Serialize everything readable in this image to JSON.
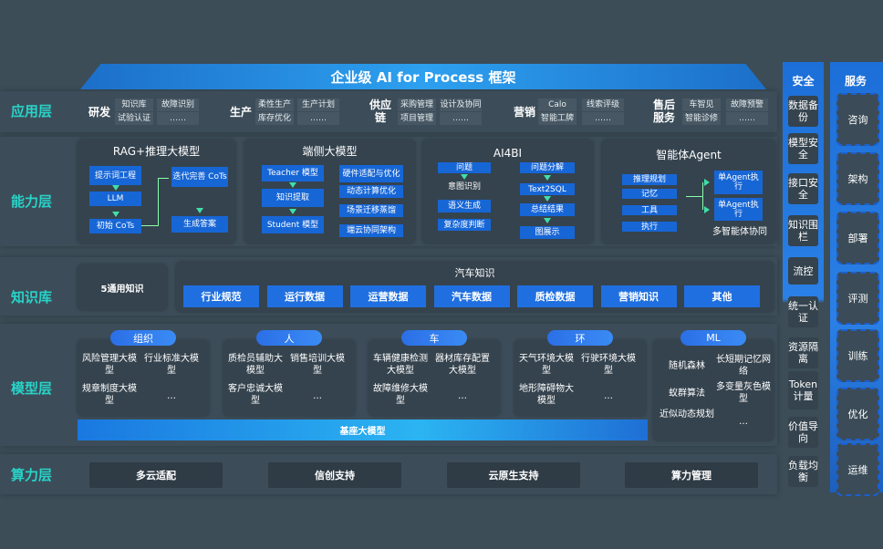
{
  "title": "企业级 AI for Process 框架",
  "layers": {
    "app": "应用层",
    "capability": "能力层",
    "knowledge": "知识库",
    "model": "模型层",
    "compute": "算力层"
  },
  "app_groups": [
    {
      "label": "研发",
      "items": [
        "知识库",
        "故障识别",
        "试验认证",
        "……"
      ]
    },
    {
      "label": "生产",
      "items": [
        "柔性生产",
        "生产计划",
        "库存优化",
        "……"
      ]
    },
    {
      "label": "供应链",
      "items": [
        "采购管理",
        "设计及协同",
        "项目管理",
        "……"
      ]
    },
    {
      "label": "营销",
      "items": [
        "Calo",
        "线索评级",
        "智能工牌",
        "……"
      ]
    },
    {
      "label": "售后服务",
      "items": [
        "车智见",
        "故障预警",
        "智能诊修",
        "……"
      ]
    }
  ],
  "capability": {
    "rag": {
      "title": "RAG+推理大模型",
      "boxes": [
        "提示词工程",
        "LLM",
        "初始 CoTs",
        "迭代完善 CoTs",
        "生成答案"
      ]
    },
    "edge": {
      "title": "端侧大模型",
      "boxes": [
        "Teacher 模型",
        "知识提取",
        "Student 模型",
        "硬件适配与优化",
        "动态计算优化",
        "场景迁移蒸馏",
        "端云协同架构"
      ]
    },
    "ai4bi": {
      "title": "AI4BI",
      "boxes": [
        "问题",
        "语义生成",
        "复杂度判断",
        "问题分解",
        "Text2SQL",
        "总结结果",
        "图展示"
      ],
      "text": "意图识别"
    },
    "agent": {
      "title": "智能体Agent",
      "boxes": [
        "推理规划",
        "记忆",
        "工具",
        "执行",
        "单Agent执行",
        "单Agent执行"
      ],
      "text": "多智能体协同"
    }
  },
  "knowledge": {
    "general": "5通用知识",
    "auto_title": "汽车知识",
    "items": [
      "行业规范",
      "运行数据",
      "运营数据",
      "汽车数据",
      "质检数据",
      "营销知识",
      "其他"
    ]
  },
  "model": {
    "groups": [
      {
        "pill": "组织",
        "items": [
          "风险管理大模型",
          "行业标准大模型",
          "规章制度大模型",
          "…"
        ]
      },
      {
        "pill": "人",
        "items": [
          "质检员辅助大模型",
          "销售培训大模型",
          "客户忠诚大模型",
          "…"
        ]
      },
      {
        "pill": "车",
        "items": [
          "车辆健康检测大模型",
          "器材库存配置大模型",
          "故障维修大模型",
          "…"
        ]
      },
      {
        "pill": "环",
        "items": [
          "天气环境大模型",
          "行驶环境大模型",
          "地形障碍物大模型",
          "…"
        ]
      },
      {
        "pill": "ML",
        "items": [
          "随机森林",
          "长短期记忆网络",
          "蚁群算法",
          "多变量灰色模型",
          "近似动态规划",
          "…"
        ]
      }
    ],
    "base": "基座大模型"
  },
  "compute": [
    "多云适配",
    "信创支持",
    "云原生支持",
    "算力管理"
  ],
  "security": {
    "title": "安全",
    "items": [
      "数据备份",
      "模型安全",
      "接口安全",
      "知识围栏",
      "流控",
      "统一认证",
      "资源隔离",
      "Token计量",
      "价值导向",
      "负载均衡"
    ]
  },
  "services": {
    "title": "服务",
    "items": [
      "咨询",
      "架构",
      "部署",
      "评测",
      "训练",
      "优化",
      "运维"
    ]
  },
  "colors": {
    "accent": "#1766d6",
    "layer_label": "#29d3c8",
    "background": "#3c4d58"
  }
}
